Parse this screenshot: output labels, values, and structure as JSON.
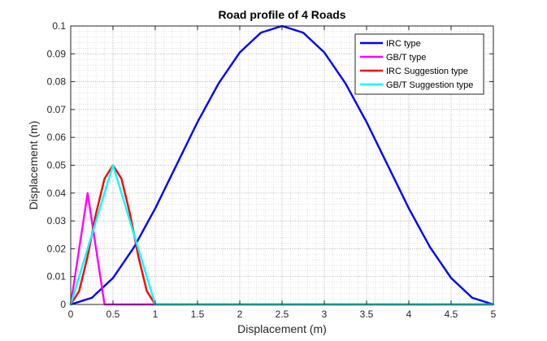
{
  "chart_data": {
    "type": "line",
    "title": "Road profile of 4 Roads",
    "xlabel": "Displacement (m)",
    "ylabel": "Displacement (m)",
    "xlim": [
      0,
      5
    ],
    "ylim": [
      0,
      0.1
    ],
    "grid": true,
    "minor_grid": true,
    "legend_position": "top-right",
    "xticks": [
      0,
      0.5,
      1,
      1.5,
      2,
      2.5,
      3,
      3.5,
      4,
      4.5,
      5
    ],
    "xtick_labels": [
      "0",
      "0.5",
      "1",
      "1.5",
      "2",
      "2.5",
      "3",
      "3.5",
      "4",
      "4.5",
      "5"
    ],
    "yticks": [
      0,
      0.01,
      0.02,
      0.03,
      0.04,
      0.05,
      0.06,
      0.07,
      0.08,
      0.09,
      0.1
    ],
    "ytick_labels": [
      "0",
      "0.01",
      "0.02",
      "0.03",
      "0.04",
      "0.05",
      "0.06",
      "0.07",
      "0.08",
      "0.09",
      "0.1"
    ],
    "series": [
      {
        "name": "IRC type",
        "color": "#0000ff",
        "x": [
          0,
          0.25,
          0.5,
          0.75,
          1,
          1.25,
          1.5,
          1.75,
          2,
          2.25,
          2.5,
          2.75,
          3,
          3.25,
          3.5,
          3.75,
          4,
          4.25,
          4.5,
          4.75,
          5
        ],
        "y": [
          0,
          0.0024,
          0.0095,
          0.0206,
          0.0345,
          0.05,
          0.0655,
          0.0794,
          0.0905,
          0.0976,
          0.1,
          0.0976,
          0.0905,
          0.0794,
          0.0655,
          0.05,
          0.0345,
          0.0206,
          0.0095,
          0.0024,
          0
        ]
      },
      {
        "name": "GB/T type",
        "color": "#ff00ff",
        "x": [
          0,
          0.2,
          0.4,
          5
        ],
        "y": [
          0,
          0.04,
          0,
          0
        ]
      },
      {
        "name": "IRC Suggestion type",
        "color": "#ff0000",
        "x": [
          0,
          0.1,
          0.2,
          0.3,
          0.4,
          0.5,
          0.6,
          0.7,
          0.8,
          0.9,
          1,
          5
        ],
        "y": [
          0,
          0.0048,
          0.0173,
          0.0327,
          0.0452,
          0.05,
          0.0452,
          0.0327,
          0.0173,
          0.0048,
          0,
          0
        ]
      },
      {
        "name": "GB/T Suggestion type",
        "color": "#00ffff",
        "x": [
          0,
          0.5,
          1,
          5
        ],
        "y": [
          0,
          0.05,
          0,
          0
        ]
      }
    ]
  }
}
